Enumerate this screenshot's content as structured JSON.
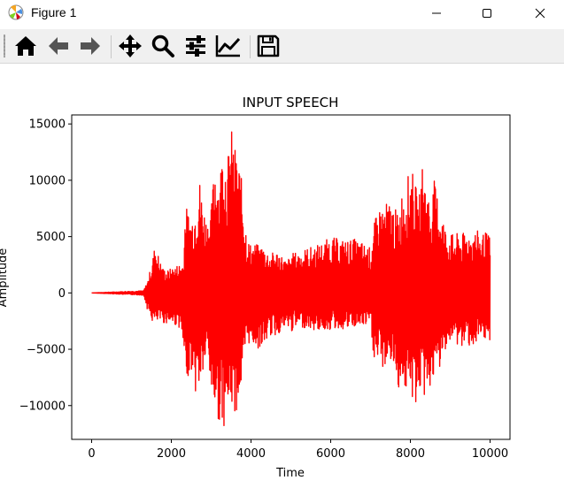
{
  "window": {
    "title": "Figure 1"
  },
  "toolbar": {
    "icons": [
      "home-icon",
      "back-arrow-icon",
      "forward-arrow-icon",
      "pan-icon",
      "zoom-icon",
      "configure-subplots-icon",
      "edit-axis-icon",
      "save-icon"
    ]
  },
  "chart_data": {
    "type": "line",
    "title": "INPUT SPEECH",
    "xlabel": "Time",
    "ylabel": "Amplitude",
    "xlim": [
      -500,
      10500
    ],
    "ylim": [
      -13000,
      15800
    ],
    "xticks": [
      0,
      2000,
      4000,
      6000,
      8000,
      10000
    ],
    "xtick_labels": [
      "0",
      "2000",
      "4000",
      "6000",
      "8000",
      "10000"
    ],
    "yticks": [
      -10000,
      -5000,
      0,
      5000,
      10000,
      15000
    ],
    "ytick_labels": [
      "−10000",
      "−5000",
      "0",
      "5000",
      "10000",
      "15000"
    ],
    "grid": false,
    "series": [
      {
        "color": "#ff0000",
        "envelope_x": [
          0,
          1300,
          1400,
          1500,
          1600,
          1700,
          1800,
          1900,
          2000,
          2100,
          2200,
          2300,
          2350,
          2400,
          2500,
          2600,
          2700,
          2800,
          2900,
          3000,
          3100,
          3200,
          3300,
          3400,
          3500,
          3600,
          3700,
          3800,
          3900,
          4000,
          4100,
          4200,
          4300,
          4400,
          4500,
          4600,
          4700,
          4800,
          4900,
          5000,
          5200,
          5400,
          5600,
          5800,
          6000,
          6200,
          6400,
          6600,
          6800,
          7000,
          7100,
          7200,
          7300,
          7400,
          7500,
          7600,
          7700,
          7800,
          7900,
          8000,
          8100,
          8200,
          8300,
          8400,
          8500,
          8600,
          8700,
          8800,
          8900,
          9000,
          9100,
          9200,
          9300,
          9400,
          9500,
          9600,
          9700,
          9800,
          9900,
          10000
        ],
        "envelope_upper": [
          0,
          200,
          1000,
          2500,
          4500,
          3000,
          2200,
          2000,
          2200,
          2400,
          2600,
          2800,
          7800,
          7500,
          6800,
          8000,
          10500,
          8000,
          6500,
          7500,
          12500,
          10000,
          13800,
          11500,
          14800,
          13000,
          11800,
          9000,
          5000,
          4300,
          4400,
          4200,
          4300,
          3800,
          3500,
          3700,
          3800,
          3200,
          2800,
          3500,
          3700,
          4000,
          4200,
          4500,
          5000,
          4800,
          4700,
          4800,
          4500,
          4000,
          6300,
          7500,
          7900,
          8000,
          8200,
          7600,
          7000,
          9300,
          10000,
          11000,
          10500,
          7800,
          11500,
          9800,
          8000,
          10000,
          8500,
          7200,
          5500,
          5500,
          5000,
          5400,
          5200,
          5600,
          5400,
          5600,
          5500,
          5300,
          5400,
          5000
        ],
        "envelope_lower": [
          0,
          -200,
          -1500,
          -2500,
          -2800,
          -2600,
          -2700,
          -2700,
          -2800,
          -2900,
          -3100,
          -5000,
          -8500,
          -7500,
          -6800,
          -9000,
          -8600,
          -7200,
          -5500,
          -9000,
          -10500,
          -11500,
          -12000,
          -11000,
          -10000,
          -11000,
          -9500,
          -8000,
          -4500,
          -4600,
          -4700,
          -5000,
          -4800,
          -4200,
          -3800,
          -3900,
          -3600,
          -3400,
          -3200,
          -3500,
          -3100,
          -3100,
          -3400,
          -3300,
          -3300,
          -3200,
          -3300,
          -3100,
          -3000,
          -3000,
          -6500,
          -6200,
          -6800,
          -6400,
          -6000,
          -7300,
          -8500,
          -7800,
          -9000,
          -9200,
          -10500,
          -8800,
          -9200,
          -9500,
          -8300,
          -8000,
          -6900,
          -6800,
          -4500,
          -4600,
          -4300,
          -4800,
          -5000,
          -4500,
          -4700,
          -4700,
          -4900,
          -4600,
          -4500,
          -4200
        ]
      }
    ]
  }
}
